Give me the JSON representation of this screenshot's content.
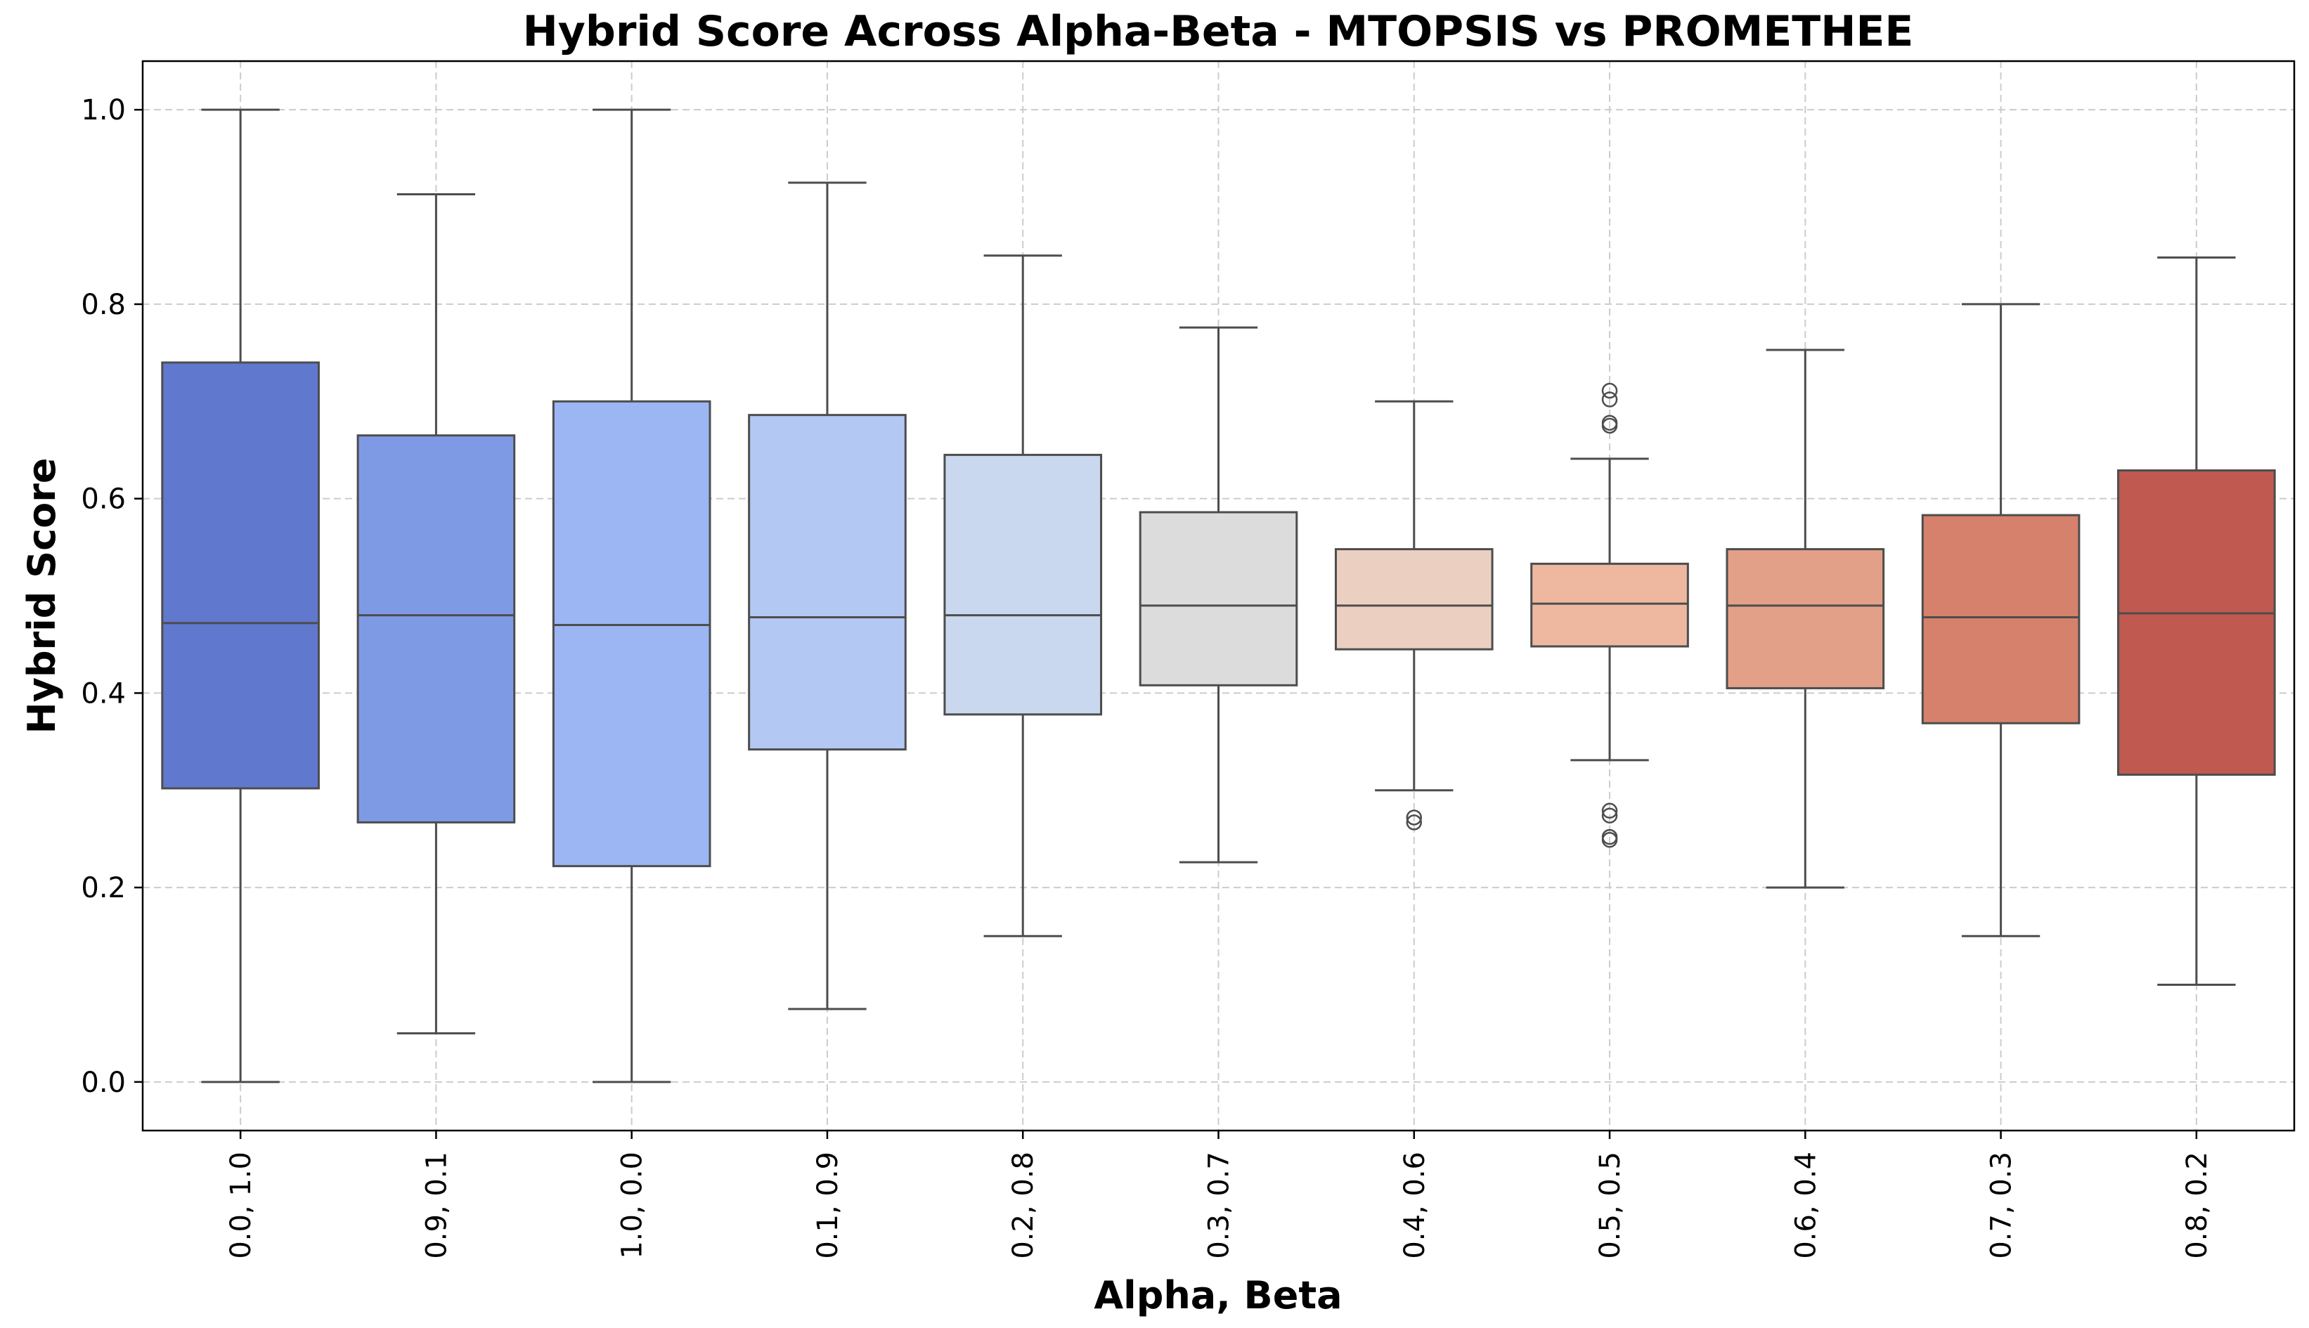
{
  "chart_data": {
    "type": "box",
    "title": "Hybrid Score Across Alpha-Beta - MTOPSIS vs PROMETHEE",
    "xlabel": "Alpha, Beta",
    "ylabel": "Hybrid Score",
    "ylim": [
      -0.05,
      1.05
    ],
    "yticks": [
      0.0,
      0.2,
      0.4,
      0.6,
      0.8,
      1.0
    ],
    "ytick_labels": [
      "0.0",
      "0.2",
      "0.4",
      "0.6",
      "0.8",
      "1.0"
    ],
    "grid": true,
    "categories": [
      "0.0, 1.0",
      "0.9, 0.1",
      "1.0, 0.0",
      "0.1, 0.9",
      "0.2, 0.8",
      "0.3, 0.7",
      "0.4, 0.6",
      "0.5, 0.5",
      "0.6, 0.4",
      "0.7, 0.3",
      "0.8, 0.2"
    ],
    "boxes": [
      {
        "category": "0.0, 1.0",
        "whislo": 0.0,
        "q1": 0.302,
        "med": 0.472,
        "q3": 0.74,
        "whishi": 1.0,
        "fliers": [],
        "color": "#6079cf"
      },
      {
        "category": "0.9, 0.1",
        "whislo": 0.05,
        "q1": 0.267,
        "med": 0.48,
        "q3": 0.665,
        "whishi": 0.913,
        "fliers": [],
        "color": "#7f9ae5"
      },
      {
        "category": "1.0, 0.0",
        "whislo": 0.0,
        "q1": 0.222,
        "med": 0.47,
        "q3": 0.7,
        "whishi": 1.0,
        "fliers": [],
        "color": "#9bb6f2"
      },
      {
        "category": "0.1, 0.9",
        "whislo": 0.075,
        "q1": 0.342,
        "med": 0.478,
        "q3": 0.686,
        "whishi": 0.925,
        "fliers": [],
        "color": "#b3c9f3"
      },
      {
        "category": "0.2, 0.8",
        "whislo": 0.15,
        "q1": 0.378,
        "med": 0.48,
        "q3": 0.645,
        "whishi": 0.85,
        "fliers": [],
        "color": "#cad8ef"
      },
      {
        "category": "0.3, 0.7",
        "whislo": 0.226,
        "q1": 0.408,
        "med": 0.49,
        "q3": 0.586,
        "whishi": 0.776,
        "fliers": [],
        "color": "#dcdcdc"
      },
      {
        "category": "0.4, 0.6",
        "whislo": 0.3,
        "q1": 0.445,
        "med": 0.49,
        "q3": 0.548,
        "whishi": 0.7,
        "fliers": [
          0.272,
          0.267
        ],
        "color": "#ebd0c2"
      },
      {
        "category": "0.5, 0.5",
        "whislo": 0.331,
        "q1": 0.448,
        "med": 0.492,
        "q3": 0.533,
        "whishi": 0.641,
        "fliers": [
          0.711,
          0.702,
          0.678,
          0.675,
          0.279,
          0.274,
          0.252,
          0.249
        ],
        "color": "#eeb8a0"
      },
      {
        "category": "0.6, 0.4",
        "whislo": 0.2,
        "q1": 0.405,
        "med": 0.49,
        "q3": 0.548,
        "whishi": 0.753,
        "fliers": [],
        "color": "#e3a088"
      },
      {
        "category": "0.7, 0.3",
        "whislo": 0.15,
        "q1": 0.369,
        "med": 0.478,
        "q3": 0.583,
        "whishi": 0.8,
        "fliers": [],
        "color": "#d6816b"
      },
      {
        "category": "0.8, 0.2",
        "whislo": 0.1,
        "q1": 0.316,
        "med": 0.482,
        "q3": 0.629,
        "whishi": 0.848,
        "fliers": [],
        "color": "#c05a50"
      }
    ]
  }
}
